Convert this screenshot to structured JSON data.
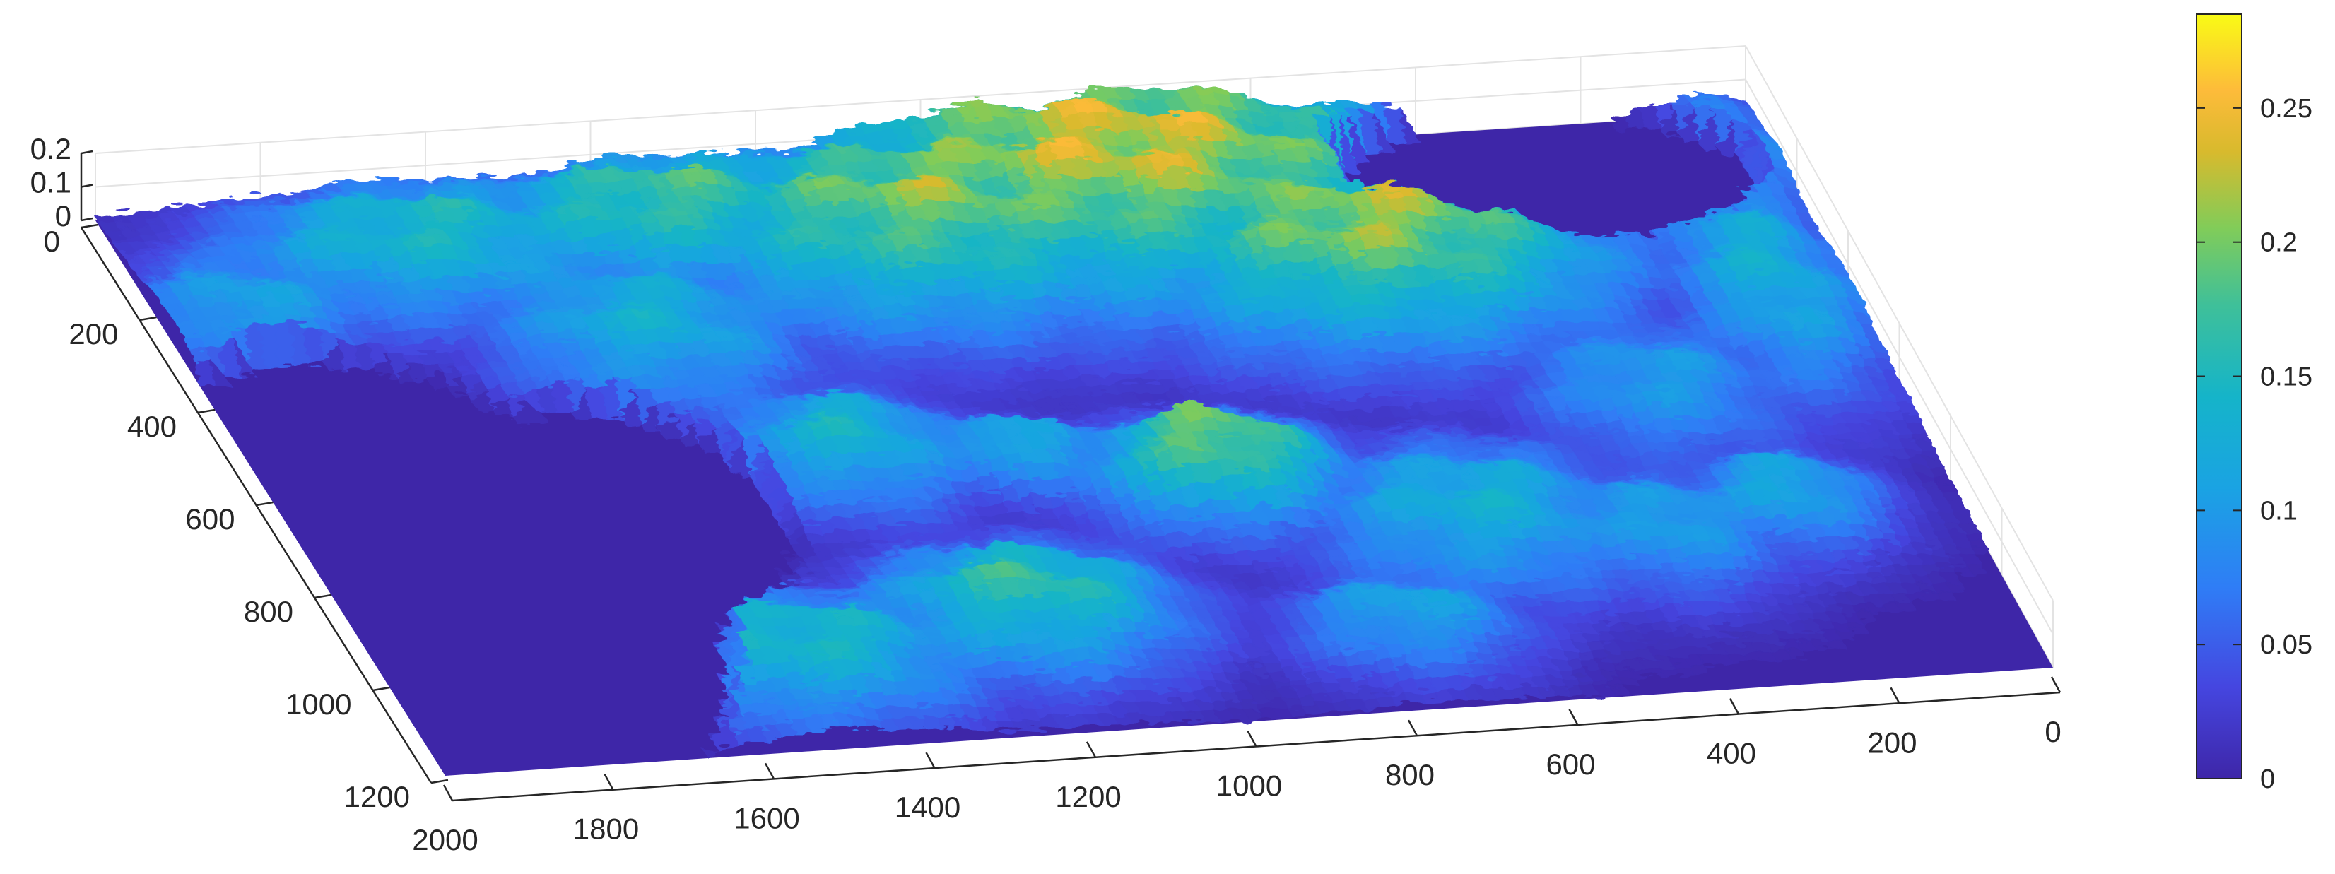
{
  "chart_data": {
    "type": "surface",
    "title": "",
    "xlabel": "",
    "ylabel": "",
    "zlabel": "",
    "x_axis": {
      "ticks": [
        0,
        200,
        400,
        600,
        800,
        1000,
        1200,
        1400,
        1600,
        1800,
        2000
      ],
      "range": [
        0,
        2000
      ]
    },
    "y_axis": {
      "ticks": [
        0,
        200,
        400,
        600,
        800,
        1000,
        1200
      ],
      "range": [
        0,
        1200
      ]
    },
    "z_axis": {
      "ticks": [
        0,
        0.1,
        0.2
      ],
      "range": [
        0,
        0.2
      ]
    },
    "colorbar": {
      "ticks": [
        0,
        0.05,
        0.1,
        0.15,
        0.2,
        0.25
      ],
      "tick_labels": [
        "0",
        "0.05",
        "0.1",
        "0.15",
        "0.2",
        "0.25"
      ],
      "range": [
        0,
        0.285
      ],
      "colormap": "parula",
      "placement": "right"
    },
    "grid": true,
    "surface_value_range": [
      0,
      0.28
    ],
    "colors": {
      "low": "#3e26a8",
      "mid_low": "#2f7df6",
      "mid": "#15b4c9",
      "mid_high": "#81cc59",
      "high": "#f5ba3c",
      "peak": "#f9fb15"
    }
  }
}
